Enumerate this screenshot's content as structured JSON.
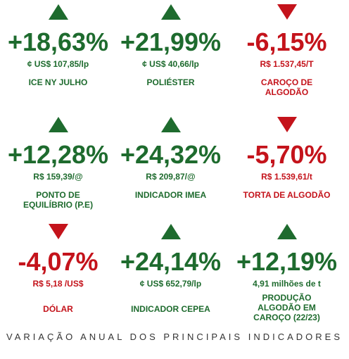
{
  "indicators": [
    {
      "direction": "up",
      "change": "+18,63%",
      "price": "¢ US$ 107,85/lp",
      "label": "ICE NY JULHO",
      "color": "#1e6b2e"
    },
    {
      "direction": "up",
      "change": "+21,99%",
      "price": "¢ US$ 40,66/lp",
      "label": "POLIÉSTER",
      "color": "#1e6b2e"
    },
    {
      "direction": "down",
      "change": "-6,15%",
      "price": "R$ 1.537,45/T",
      "label": "CAROÇO DE ALGODÃO",
      "color": "#c4131b"
    },
    {
      "direction": "up",
      "change": "+12,28%",
      "price": "R$ 159,39/@",
      "label": "PONTO DE EQUILÍBRIO (P.E)",
      "color": "#1e6b2e"
    },
    {
      "direction": "up",
      "change": "+24,32%",
      "price": "R$ 209,87/@",
      "label": "INDICADOR IMEA",
      "color": "#1e6b2e"
    },
    {
      "direction": "down",
      "change": "-5,70%",
      "price": "R$ 1.539,61/t",
      "label": "TORTA DE ALGODÃO",
      "color": "#c4131b"
    },
    {
      "direction": "down",
      "change": "-4,07%",
      "price": "R$ 5,18 /US$",
      "label": "DÓLAR",
      "color": "#c4131b"
    },
    {
      "direction": "up",
      "change": "+24,14%",
      "price": "¢ US$ 652,79/lp",
      "label": "INDICADOR CEPEA",
      "color": "#1e6b2e"
    },
    {
      "direction": "up",
      "change": "+12,19%",
      "price": "4,91 milhões de  t",
      "label": "PRODUÇÃO ALGODÃO EM CAROÇO (22/23)",
      "color": "#1e6b2e"
    }
  ],
  "footer": {
    "title": "VARIAÇÃO ANUAL DOS PRINCIPAIS INDICADORES"
  }
}
